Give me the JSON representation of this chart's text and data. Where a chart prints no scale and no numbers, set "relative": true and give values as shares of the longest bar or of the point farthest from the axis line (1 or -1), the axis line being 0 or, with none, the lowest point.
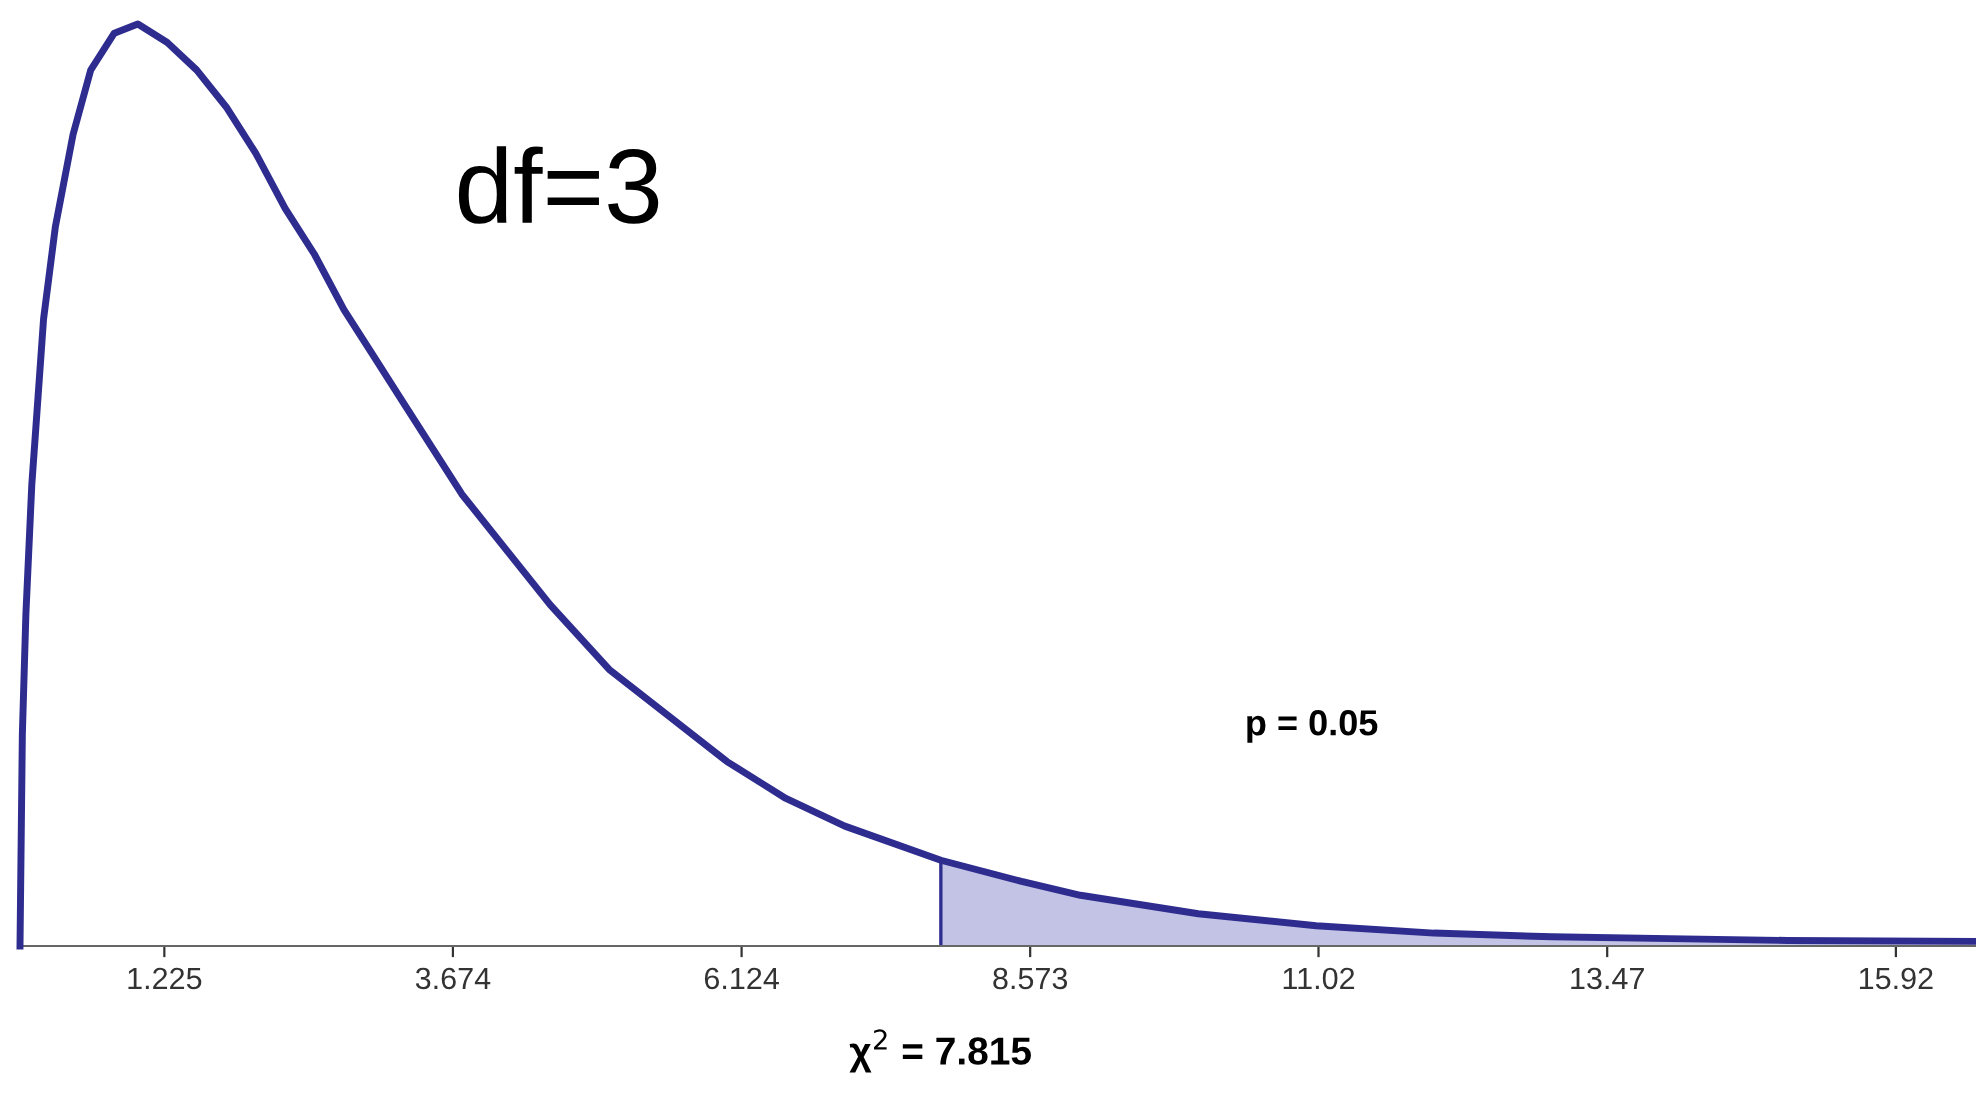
{
  "chart_data": {
    "type": "line",
    "relative": true,
    "xlim": [
      0,
      16.6
    ],
    "xticks": [
      1.225,
      3.674,
      6.124,
      8.573,
      11.02,
      13.47,
      15.92
    ],
    "series": [
      {
        "color": "#2e2d8f",
        "x": [
          0,
          0.02,
          0.05,
          0.1,
          0.2,
          0.3,
          0.45,
          0.6,
          0.8,
          1.0,
          1.25,
          1.5,
          1.75,
          2,
          2.25,
          2.5,
          2.75,
          3,
          3.25,
          3.5,
          3.75,
          4,
          4.5,
          5,
          5.5,
          6,
          6.5,
          7,
          7.815,
          8.5,
          9,
          10,
          11,
          12,
          13,
          14,
          15,
          16.6
        ],
        "values": [
          0,
          0.23,
          0.36,
          0.5,
          0.68,
          0.78,
          0.88,
          0.95,
          0.99,
          1.0,
          0.98,
          0.95,
          0.91,
          0.86,
          0.8,
          0.75,
          0.69,
          0.64,
          0.59,
          0.54,
          0.49,
          0.45,
          0.37,
          0.3,
          0.25,
          0.2,
          0.16,
          0.13,
          0.093,
          0.07,
          0.055,
          0.035,
          0.022,
          0.014,
          0.01,
          0.008,
          0.006,
          0.005
        ]
      },
      {
        "type": "area",
        "color": "#c3c4e5",
        "x": [
          7.815,
          8.5,
          9,
          10,
          11,
          12,
          13,
          14,
          15,
          16.6
        ],
        "values": [
          0.093,
          0.07,
          0.055,
          0.035,
          0.022,
          0.014,
          0.01,
          0.008,
          0.006,
          0.005
        ]
      }
    ],
    "ref_lines": [
      {
        "axis": "x",
        "value": 7.815,
        "label": "χ$^{2}$ = 7.815",
        "color": "#2e2d8f"
      }
    ],
    "annotations": [
      "df=3",
      "p = 0.05"
    ]
  }
}
